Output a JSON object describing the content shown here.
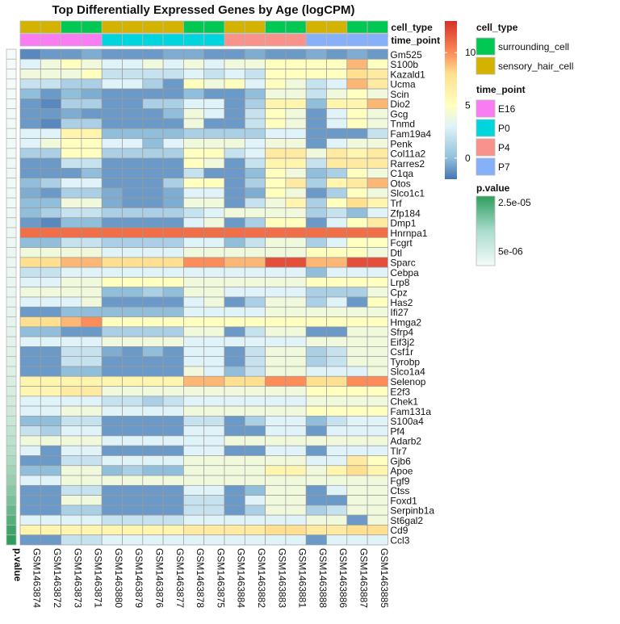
{
  "chart_data": {
    "type": "heatmap",
    "title": "Top Differentially Expressed Genes by Age (logCPM)",
    "samples": [
      "GSM1463874",
      "GSM1463872",
      "GSM1463873",
      "GSM1463871",
      "GSM1463880",
      "GSM1463879",
      "GSM1463876",
      "GSM1463877",
      "GSM1463878",
      "GSM1463875",
      "GSM1463884",
      "GSM1463882",
      "GSM1463883",
      "GSM1463881",
      "GSM1463888",
      "GSM1463886",
      "GSM1463887",
      "GSM1463885"
    ],
    "annotations": {
      "cell_type": {
        "label": "cell_type",
        "values": [
          "sensory_hair_cell",
          "sensory_hair_cell",
          "surrounding_cell",
          "surrounding_cell",
          "sensory_hair_cell",
          "sensory_hair_cell",
          "sensory_hair_cell",
          "sensory_hair_cell",
          "surrounding_cell",
          "surrounding_cell",
          "sensory_hair_cell",
          "sensory_hair_cell",
          "surrounding_cell",
          "surrounding_cell",
          "sensory_hair_cell",
          "sensory_hair_cell",
          "surrounding_cell",
          "surrounding_cell"
        ],
        "levels": [
          "surrounding_cell",
          "sensory_hair_cell"
        ],
        "colors": {
          "surrounding_cell": "#00c853",
          "sensory_hair_cell": "#d4b300"
        }
      },
      "time_point": {
        "label": "time_point",
        "values": [
          "E16",
          "E16",
          "E16",
          "E16",
          "P0",
          "P0",
          "P0",
          "P0",
          "P0",
          "P0",
          "P4",
          "P4",
          "P4",
          "P4",
          "P7",
          "P7",
          "P7",
          "P7"
        ],
        "levels": [
          "E16",
          "P0",
          "P4",
          "P7"
        ],
        "colors": {
          "E16": "#f97cf3",
          "P0": "#00d4dd",
          "P4": "#f8928a",
          "P7": "#87b0fb"
        }
      }
    },
    "genes": [
      "Gm525",
      "S100b",
      "Kazald1",
      "Ucma",
      "Scin",
      "Dio2",
      "Gcg",
      "Tnmd",
      "Fam19a4",
      "Penk",
      "Col11a2",
      "Rarres2",
      "C1qa",
      "Otos",
      "Slco1c1",
      "Trf",
      "Zfp184",
      "Dmp1",
      "Hnrnpa1",
      "Fcgrt",
      "Dtl",
      "Sparc",
      "Cebpa",
      "Lrp8",
      "Cpz",
      "Has2",
      "Ifi27",
      "Hmga2",
      "Sfrp4",
      "Eif3j2",
      "Csf1r",
      "Tyrobp",
      "Slco1a4",
      "Selenop",
      "E2f3",
      "Chek1",
      "Fam131a",
      "S100a4",
      "Pf4",
      "Adarb2",
      "Tlr7",
      "Gjb6",
      "Apoe",
      "Fgf9",
      "Ctss",
      "Foxd1",
      "Serpinb1a",
      "St6gal2",
      "Cd9",
      "Ccl3"
    ],
    "p_value": {
      "label": "p.value",
      "values": [
        5e-07,
        5e-07,
        5e-07,
        5e-07,
        6e-07,
        7e-07,
        8e-07,
        8e-07,
        8e-07,
        9e-07,
        9e-07,
        1e-06,
        1e-06,
        1e-06,
        1.1e-06,
        1.1e-06,
        1.2e-06,
        1.3e-06,
        1.3e-06,
        1.4e-06,
        1.5e-06,
        1.6e-06,
        1.7e-06,
        1.8e-06,
        1.9e-06,
        2e-06,
        2.2e-06,
        2.4e-06,
        2.6e-06,
        2.8e-06,
        3e-06,
        3.3e-06,
        3.6e-06,
        4e-06,
        4.5e-06,
        5e-06,
        5.6e-06,
        6.3e-06,
        7e-06,
        7.8e-06,
        8.8e-06,
        1e-05,
        1.15e-05,
        1.3e-05,
        1.5e-05,
        1.7e-05,
        1.95e-05,
        2.2e-05,
        2.5e-05,
        2.7e-05
      ],
      "legend_ticks": [
        {
          "value": 2.5e-05,
          "label": "2.5e-05"
        },
        {
          "value": 5e-06,
          "label": "5e-06"
        }
      ],
      "range": [
        5e-07,
        2.7e-05
      ]
    },
    "color_scale": {
      "min": -2,
      "max": 13,
      "ticks": [
        10,
        5,
        0
      ],
      "stops": [
        {
          "v": -2,
          "c": "#4575b4"
        },
        {
          "v": 0,
          "c": "#91bfdb"
        },
        {
          "v": 3,
          "c": "#e0f3f8"
        },
        {
          "v": 5,
          "c": "#ffffbf"
        },
        {
          "v": 8,
          "c": "#fee090"
        },
        {
          "v": 10,
          "c": "#fc8d59"
        },
        {
          "v": 13,
          "c": "#d73027"
        }
      ]
    },
    "values": [
      [
        -1.5,
        -1,
        -1,
        -0.5,
        -1,
        -1,
        -1,
        -0.5,
        -0.5,
        -1,
        -1,
        -0.5,
        -1,
        -1,
        -0.5,
        -1,
        -0.5,
        -1
      ],
      [
        3,
        4,
        5,
        4,
        3,
        3,
        4,
        3,
        4,
        3,
        4,
        4,
        5,
        5,
        5,
        5,
        9,
        5
      ],
      [
        4,
        4,
        4,
        5,
        2,
        2,
        2,
        2,
        3,
        2,
        3,
        2,
        5,
        5,
        5,
        5,
        8,
        7
      ],
      [
        2,
        2,
        1,
        1,
        3,
        3,
        1,
        -1,
        5,
        4,
        5,
        3,
        5,
        4,
        2,
        3,
        9,
        7
      ],
      [
        0,
        -1,
        0,
        -0.5,
        -1,
        -1,
        -1,
        -1,
        0,
        -1,
        -1,
        0,
        4,
        4,
        2,
        4,
        5,
        4
      ],
      [
        -1,
        -1.5,
        1,
        1,
        -1,
        -1,
        1,
        1,
        3,
        3,
        -1,
        1,
        6,
        6,
        0,
        6,
        6,
        9
      ],
      [
        -1,
        -1,
        -0.5,
        -1,
        -1,
        -1,
        -1,
        0,
        4,
        3,
        -1,
        2,
        5,
        4,
        -1,
        3,
        5,
        4
      ],
      [
        -1,
        -1.5,
        1,
        1,
        -1,
        -1,
        -1,
        -1,
        4,
        -1,
        -1,
        2,
        5,
        4,
        -1,
        3,
        5,
        4
      ],
      [
        3,
        3,
        6,
        6,
        0,
        0,
        0,
        0,
        1,
        1,
        1,
        1,
        3,
        3,
        -1,
        -1,
        -1,
        2
      ],
      [
        3,
        4,
        5,
        5,
        3,
        3,
        0,
        3,
        4,
        4,
        4,
        3,
        4,
        4,
        -1,
        3,
        4,
        4
      ],
      [
        1,
        1,
        5,
        5,
        1,
        1,
        1,
        1,
        5,
        5,
        2,
        3,
        7,
        7,
        4,
        7,
        6,
        7
      ],
      [
        -1,
        -1,
        2,
        2,
        -1,
        -1,
        -1,
        -1,
        5,
        4,
        -1,
        2,
        6,
        6,
        2,
        7,
        7,
        7
      ],
      [
        -1,
        -1,
        -1,
        0,
        -1,
        -1,
        -1,
        -1,
        2,
        -1,
        -1,
        0,
        5,
        4,
        0,
        1,
        5,
        4
      ],
      [
        0,
        1,
        3,
        3,
        -1,
        -1,
        -1,
        1,
        5,
        5,
        -1,
        1,
        5,
        7,
        1,
        6,
        7,
        9
      ],
      [
        -0.5,
        -1,
        1,
        1,
        -0.5,
        -1,
        -1,
        -0.5,
        3,
        3,
        -1,
        -0.5,
        5,
        4,
        -1,
        1,
        5,
        4
      ],
      [
        0,
        0,
        4,
        4,
        -0.5,
        -1,
        -1,
        -0.5,
        4,
        4,
        -1,
        2,
        4,
        6,
        1,
        5,
        8,
        6
      ],
      [
        0,
        1,
        2,
        2,
        1,
        1,
        1,
        1,
        2,
        3,
        4,
        4,
        4,
        4,
        1,
        2,
        0,
        3
      ],
      [
        -1,
        -1.5,
        0,
        0,
        -1,
        -1,
        -1,
        -1,
        3,
        4,
        -1,
        1,
        5,
        5,
        -1,
        3,
        5,
        7
      ],
      [
        11,
        11,
        11,
        11,
        11,
        11,
        11,
        11,
        11,
        11,
        11,
        11,
        11,
        11,
        11,
        11,
        11,
        11
      ],
      [
        0,
        0,
        2,
        2,
        1,
        1,
        1,
        1,
        3,
        3,
        0,
        2,
        4,
        4,
        1,
        3,
        5,
        5
      ],
      [
        4,
        4,
        4,
        4,
        3,
        3,
        3,
        3,
        4,
        4,
        4,
        4,
        4,
        4,
        5,
        5,
        5,
        4
      ],
      [
        8,
        8,
        9,
        9,
        8,
        8,
        8,
        8,
        10,
        10,
        9,
        9,
        12,
        12,
        9,
        9,
        12,
        12
      ],
      [
        2,
        2,
        3,
        3,
        3,
        3,
        3,
        3,
        3,
        3,
        3,
        3,
        3,
        3,
        0,
        3,
        3,
        3
      ],
      [
        3,
        3,
        4,
        4,
        5,
        5,
        5,
        5,
        4,
        4,
        4,
        4,
        4,
        4,
        5,
        5,
        5,
        5
      ],
      [
        4,
        4,
        4,
        4,
        0,
        0,
        1,
        0,
        4,
        4,
        3,
        3,
        3,
        3,
        1,
        1,
        1,
        4
      ],
      [
        3,
        3,
        3,
        4,
        -1,
        -1,
        -1,
        -1,
        3,
        4,
        -1,
        1,
        4,
        4,
        1,
        3,
        -1,
        5
      ],
      [
        -1,
        -1,
        0,
        0,
        0,
        0,
        0,
        0,
        3,
        3,
        3,
        3,
        4,
        4,
        4,
        4,
        4,
        4
      ],
      [
        8,
        8,
        9,
        10,
        5,
        5,
        5,
        5,
        5,
        5,
        5,
        5,
        5,
        5,
        5,
        5,
        5,
        5
      ],
      [
        0,
        0,
        -1,
        -1,
        1,
        1,
        1,
        1,
        4,
        4,
        -1,
        2,
        4,
        4,
        -1,
        -1,
        4,
        4
      ],
      [
        3,
        3,
        3,
        3,
        4,
        4,
        4,
        4,
        3,
        3,
        3,
        3,
        3,
        3,
        4,
        4,
        4,
        4
      ],
      [
        -1,
        -1,
        2,
        2,
        -0.5,
        -1,
        0,
        -1,
        3,
        3,
        -1,
        2,
        4,
        4,
        1,
        2,
        4,
        4
      ],
      [
        -1,
        -1,
        2,
        2,
        -1,
        -1,
        -1,
        -1,
        3,
        3,
        -1,
        2,
        4,
        4,
        1,
        2,
        4,
        4
      ],
      [
        -1,
        -1,
        0,
        0,
        -1,
        -1,
        -1,
        -1,
        4,
        3,
        0,
        2,
        4,
        4,
        3,
        3,
        3,
        4
      ],
      [
        6,
        6,
        6,
        6,
        6,
        6,
        6,
        6,
        9,
        9,
        8,
        8,
        10,
        10,
        8,
        8,
        10,
        10
      ],
      [
        6,
        6,
        7,
        7,
        4,
        4,
        4,
        4,
        4,
        4,
        4,
        4,
        4,
        4,
        5,
        5,
        5,
        5
      ],
      [
        3,
        3,
        3,
        3,
        2,
        2,
        1,
        2,
        3,
        3,
        3,
        3,
        3,
        3,
        4,
        4,
        4,
        4
      ],
      [
        3,
        3,
        4,
        4,
        3,
        3,
        3,
        3,
        4,
        4,
        4,
        4,
        4,
        4,
        5,
        5,
        5,
        5
      ],
      [
        0,
        0,
        2,
        2,
        -1,
        -1,
        -1,
        -1,
        2,
        2,
        -1,
        1,
        3,
        3,
        0,
        2,
        3,
        3
      ],
      [
        2,
        1,
        3,
        3,
        -1,
        -1,
        -1,
        -1,
        3,
        3,
        -1,
        -1,
        3,
        3,
        -1,
        3,
        3,
        3
      ],
      [
        4,
        4,
        4,
        4,
        3,
        3,
        3,
        3,
        3,
        3,
        4,
        4,
        4,
        4,
        4,
        4,
        4,
        4
      ],
      [
        3,
        -1,
        3,
        3,
        -1,
        -1,
        -1,
        -1,
        3,
        3,
        -1,
        -1,
        3,
        3,
        -1,
        3,
        3,
        3
      ],
      [
        -1,
        -1,
        2,
        2,
        3,
        3,
        3,
        3,
        4,
        4,
        4,
        4,
        4,
        4,
        3,
        3,
        7,
        5
      ],
      [
        0,
        0,
        4,
        4,
        0,
        1,
        0,
        0,
        4,
        4,
        4,
        4,
        6,
        6,
        4,
        6,
        8,
        6
      ],
      [
        3,
        3,
        4,
        4,
        4,
        4,
        4,
        4,
        4,
        4,
        4,
        4,
        4,
        4,
        4,
        4,
        4,
        4
      ],
      [
        -1,
        -1,
        2,
        2,
        -1,
        -1,
        -1,
        -1,
        3,
        3,
        -1,
        0,
        4,
        4,
        -1,
        3,
        4,
        4
      ],
      [
        -1,
        -1,
        4,
        4,
        -1,
        -1,
        -1,
        -1,
        2,
        2,
        -1,
        3,
        4,
        4,
        -1,
        -1,
        4,
        4
      ],
      [
        -1,
        -1,
        1,
        1,
        -1,
        -1,
        -1,
        -1,
        2,
        2,
        -1,
        1,
        4,
        4,
        1,
        2,
        4,
        4
      ],
      [
        3,
        3,
        3,
        3,
        2,
        2,
        2,
        2,
        3,
        3,
        3,
        3,
        3,
        3,
        4,
        4,
        -1,
        4
      ],
      [
        6,
        6,
        6,
        6,
        6,
        6,
        6,
        6,
        7,
        7,
        7,
        7,
        8,
        8,
        7,
        7,
        8,
        8
      ],
      [
        -1,
        -1,
        2,
        2,
        3,
        3,
        3,
        3,
        3,
        3,
        3,
        3,
        3,
        3,
        -1,
        3,
        3,
        3
      ]
    ]
  }
}
